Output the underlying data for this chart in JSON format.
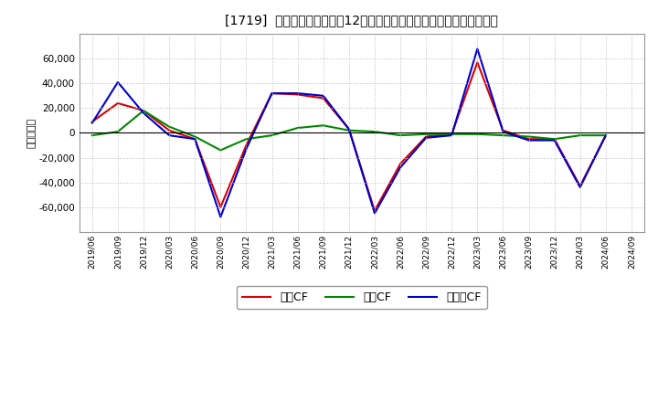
{
  "title": "[1719]  キャッシュフローの12か月移動合計の対前年同期増減額の推移",
  "ylabel": "（百万円）",
  "background_color": "#ffffff",
  "grid_color": "#bbbbbb",
  "x_labels": [
    "2019/06",
    "2019/09",
    "2019/12",
    "2020/03",
    "2020/06",
    "2020/09",
    "2020/12",
    "2021/03",
    "2021/06",
    "2021/09",
    "2021/12",
    "2022/03",
    "2022/06",
    "2022/09",
    "2022/12",
    "2023/03",
    "2023/06",
    "2023/09",
    "2023/12",
    "2024/03",
    "2024/06",
    "2024/09"
  ],
  "operating_cf": [
    9000,
    24000,
    18000,
    2000,
    -5000,
    -60000,
    -10000,
    32000,
    31000,
    28000,
    3000,
    -63000,
    -25000,
    -3000,
    -1000,
    57000,
    2000,
    -5000,
    -5000,
    -43000,
    -2000,
    null
  ],
  "investing_cf": [
    -2000,
    1000,
    18000,
    5000,
    -3000,
    -14000,
    -5000,
    -2000,
    4000,
    6000,
    2000,
    1000,
    -2000,
    -1000,
    -1000,
    -1000,
    -2000,
    -3000,
    -5000,
    -2000,
    -2000,
    null
  ],
  "free_cf": [
    8000,
    41000,
    16000,
    -2000,
    -5000,
    -68000,
    -13000,
    32000,
    32000,
    30000,
    3000,
    -65000,
    -28000,
    -4000,
    -2000,
    68000,
    1000,
    -6000,
    -6000,
    -44000,
    -2000,
    null
  ],
  "operating_color": "#dd0000",
  "investing_color": "#008800",
  "free_color": "#0000cc",
  "ylim": [
    -80000,
    80000
  ],
  "yticks": [
    -60000,
    -40000,
    -20000,
    0,
    20000,
    40000,
    60000
  ],
  "legend_labels": [
    "営業CF",
    "投資CF",
    "フリーCF"
  ]
}
